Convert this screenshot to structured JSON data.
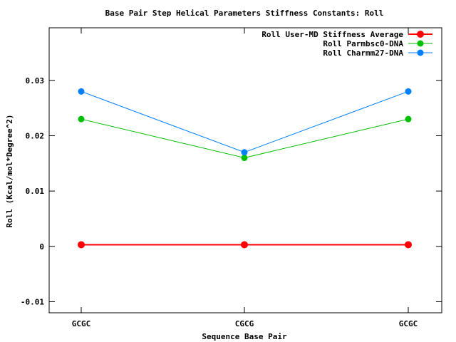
{
  "chart_data": {
    "type": "line",
    "title": "Base Pair Step Helical Parameters Stiffness Constants: Roll",
    "xlabel": "Sequence Base Pair",
    "ylabel": "Roll (Kcal/mol*Degree^2)",
    "categories": [
      "GCGC",
      "CGCG",
      "GCGC"
    ],
    "ylim": [
      -0.012,
      0.0395
    ],
    "yticks": [
      -0.01,
      0,
      0.01,
      0.02,
      0.03
    ],
    "ytick_labels": [
      "-0.01",
      "0",
      "0.01",
      "0.02",
      "0.03"
    ],
    "grid": false,
    "legend_position": "top-right",
    "series": [
      {
        "name": "Roll User-MD Stiffness Average",
        "color": "#ff0000",
        "values": [
          0.0003,
          0.0003,
          0.0003
        ]
      },
      {
        "name": "Roll Parmbsc0-DNA",
        "color": "#00c000",
        "values": [
          0.023,
          0.016,
          0.023
        ]
      },
      {
        "name": "Roll Charmm27-DNA",
        "color": "#0080ff",
        "values": [
          0.028,
          0.017,
          0.028
        ]
      }
    ]
  }
}
